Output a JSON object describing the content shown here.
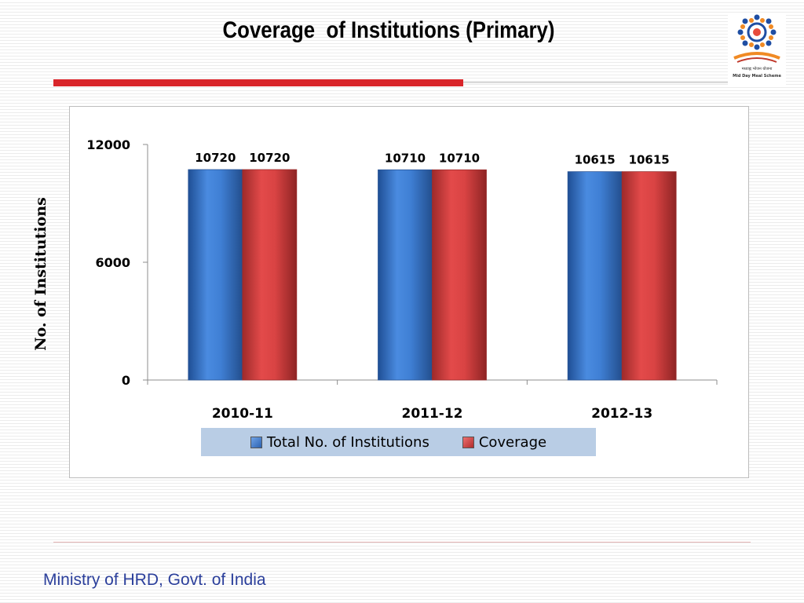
{
  "slide": {
    "title": "Coverage  of Institutions (Primary)",
    "footer": "Ministry of HRD, Govt. of India",
    "logo": {
      "icon": "mid-day-meal-logo",
      "line1": "मध्याह्न भोजन योजना",
      "line2": "Mid Day Meal Scheme"
    }
  },
  "colors": {
    "accent_red": "#d9262b",
    "footer_blue": "#2b3f9b",
    "legend_bg": "#b9cde5",
    "series_total": "#3f7fd4",
    "series_coverage": "#d94343"
  },
  "chart_data": {
    "type": "bar",
    "title": "",
    "xlabel": "",
    "ylabel": "No. of Institutions",
    "categories": [
      "2010-11",
      "2011-12",
      "2012-13"
    ],
    "series": [
      {
        "name": "Total No. of Institutions",
        "values": [
          10720,
          10710,
          10615
        ]
      },
      {
        "name": "Coverage",
        "values": [
          10720,
          10710,
          10615
        ]
      }
    ],
    "data_labels": [
      [
        "10720",
        "10710",
        "10615"
      ],
      [
        "10720",
        "10710",
        "10615"
      ]
    ],
    "ylim": [
      0,
      12000
    ],
    "yticks": [
      0,
      6000,
      12000
    ],
    "grid": false,
    "legend_position": "bottom"
  }
}
